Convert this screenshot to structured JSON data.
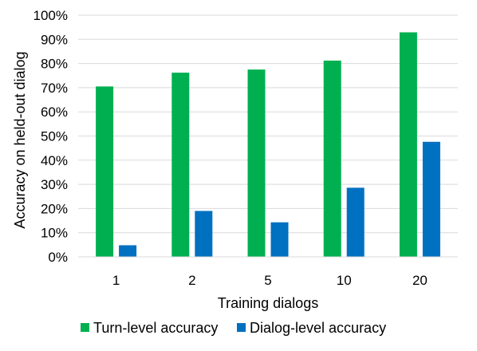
{
  "chart_data": {
    "type": "bar",
    "title": "",
    "xlabel": "Training dialogs",
    "ylabel": "Accuracy on held-out dialog",
    "categories": [
      "1",
      "2",
      "5",
      "10",
      "20"
    ],
    "series": [
      {
        "name": "Turn-level accuracy",
        "color": "#00b050",
        "values": [
          0.705,
          0.762,
          0.775,
          0.812,
          0.929
        ]
      },
      {
        "name": "Dialog-level accuracy",
        "color": "#0070c0",
        "values": [
          0.048,
          0.19,
          0.143,
          0.286,
          0.476
        ]
      }
    ],
    "ylim": [
      0,
      1
    ],
    "yticks": [
      {
        "value": 0,
        "label": "0%"
      },
      {
        "value": 0.1,
        "label": "10%"
      },
      {
        "value": 0.2,
        "label": "20%"
      },
      {
        "value": 0.3,
        "label": "30%"
      },
      {
        "value": 0.4,
        "label": "40%"
      },
      {
        "value": 0.5,
        "label": "50%"
      },
      {
        "value": 0.6,
        "label": "60%"
      },
      {
        "value": 0.7,
        "label": "70%"
      },
      {
        "value": 0.8,
        "label": "80%"
      },
      {
        "value": 0.9,
        "label": "90%"
      },
      {
        "value": 1,
        "label": "100%"
      }
    ],
    "grid": true,
    "gridline_color": "#d9d9d9",
    "legend_position": "bottom"
  }
}
